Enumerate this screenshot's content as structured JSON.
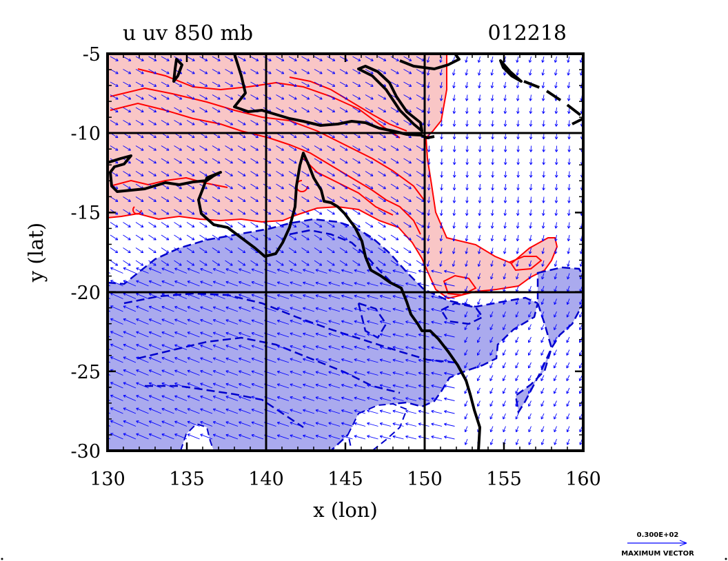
{
  "header": {
    "title": "u  uv  850  mb",
    "date_code": "012218"
  },
  "axes": {
    "xlabel": "x (lon)",
    "ylabel": "y (lat)",
    "x_range": [
      130,
      160
    ],
    "y_range": [
      -30,
      -5
    ],
    "x_ticks": [
      "130",
      "135",
      "140",
      "145",
      "150",
      "155",
      "160"
    ],
    "y_ticks": [
      "-5",
      "-10",
      "-15",
      "-20",
      "-25",
      "-30"
    ],
    "grid_lons": [
      140,
      150
    ],
    "grid_lats": [
      -10,
      -20
    ]
  },
  "legend": {
    "reference_value": "0.300E+02",
    "reference_label": "MAXIMUM VECTOR"
  },
  "colors": {
    "positive_fill": "#f9c6c6",
    "positive_contour": "#ff0000",
    "negative_fill": "#aaaaee",
    "negative_contour": "#0000cc",
    "vector": "#0000ff",
    "coast": "#000000"
  },
  "chart_data": {
    "type": "contour-map",
    "variable": "u",
    "overlay": "uv wind vectors",
    "level": "850 mb",
    "date": "012218",
    "positive_region_center": [
      144,
      -12
    ],
    "negative_region_center": [
      143,
      -24
    ],
    "coastline": [
      [
        130,
        -11.6
      ],
      [
        131,
        -11.3
      ],
      [
        132,
        -11.2
      ],
      [
        133,
        -11.9
      ],
      [
        134,
        -12.0
      ],
      [
        135,
        -12.1
      ],
      [
        136,
        -12.0
      ],
      [
        136.5,
        -12.8
      ],
      [
        135.8,
        -13.5
      ],
      [
        135.6,
        -14.7
      ],
      [
        136.8,
        -15.3
      ],
      [
        137.8,
        -16.3
      ],
      [
        139,
        -17.4
      ],
      [
        140.3,
        -17.7
      ],
      [
        141.2,
        -16.4
      ],
      [
        141.5,
        -14.0
      ],
      [
        141.6,
        -12.6
      ],
      [
        142.4,
        -10.7
      ],
      [
        142.9,
        -11.8
      ],
      [
        143.5,
        -13.2
      ],
      [
        143.6,
        -14.4
      ],
      [
        144.6,
        -14.5
      ],
      [
        145.3,
        -15.5
      ],
      [
        145.8,
        -17.0
      ],
      [
        146.1,
        -18.2
      ],
      [
        146.3,
        -19.0
      ],
      [
        147.5,
        -19.4
      ],
      [
        148.8,
        -20.3
      ],
      [
        149.4,
        -21.5
      ],
      [
        150.4,
        -22.2
      ],
      [
        151.2,
        -23.7
      ],
      [
        152.5,
        -25.2
      ],
      [
        153.1,
        -26.1
      ],
      [
        153.2,
        -27.5
      ],
      [
        153.6,
        -28.7
      ],
      [
        153.4,
        -30.0
      ]
    ],
    "new_guinea_coast": [
      [
        138,
        -5.3
      ],
      [
        141,
        -8.9
      ],
      [
        143,
        -9.2
      ],
      [
        146,
        -8.1
      ],
      [
        148,
        -8.8
      ],
      [
        150,
        -10.3
      ],
      [
        151,
        -10.0
      ]
    ]
  }
}
